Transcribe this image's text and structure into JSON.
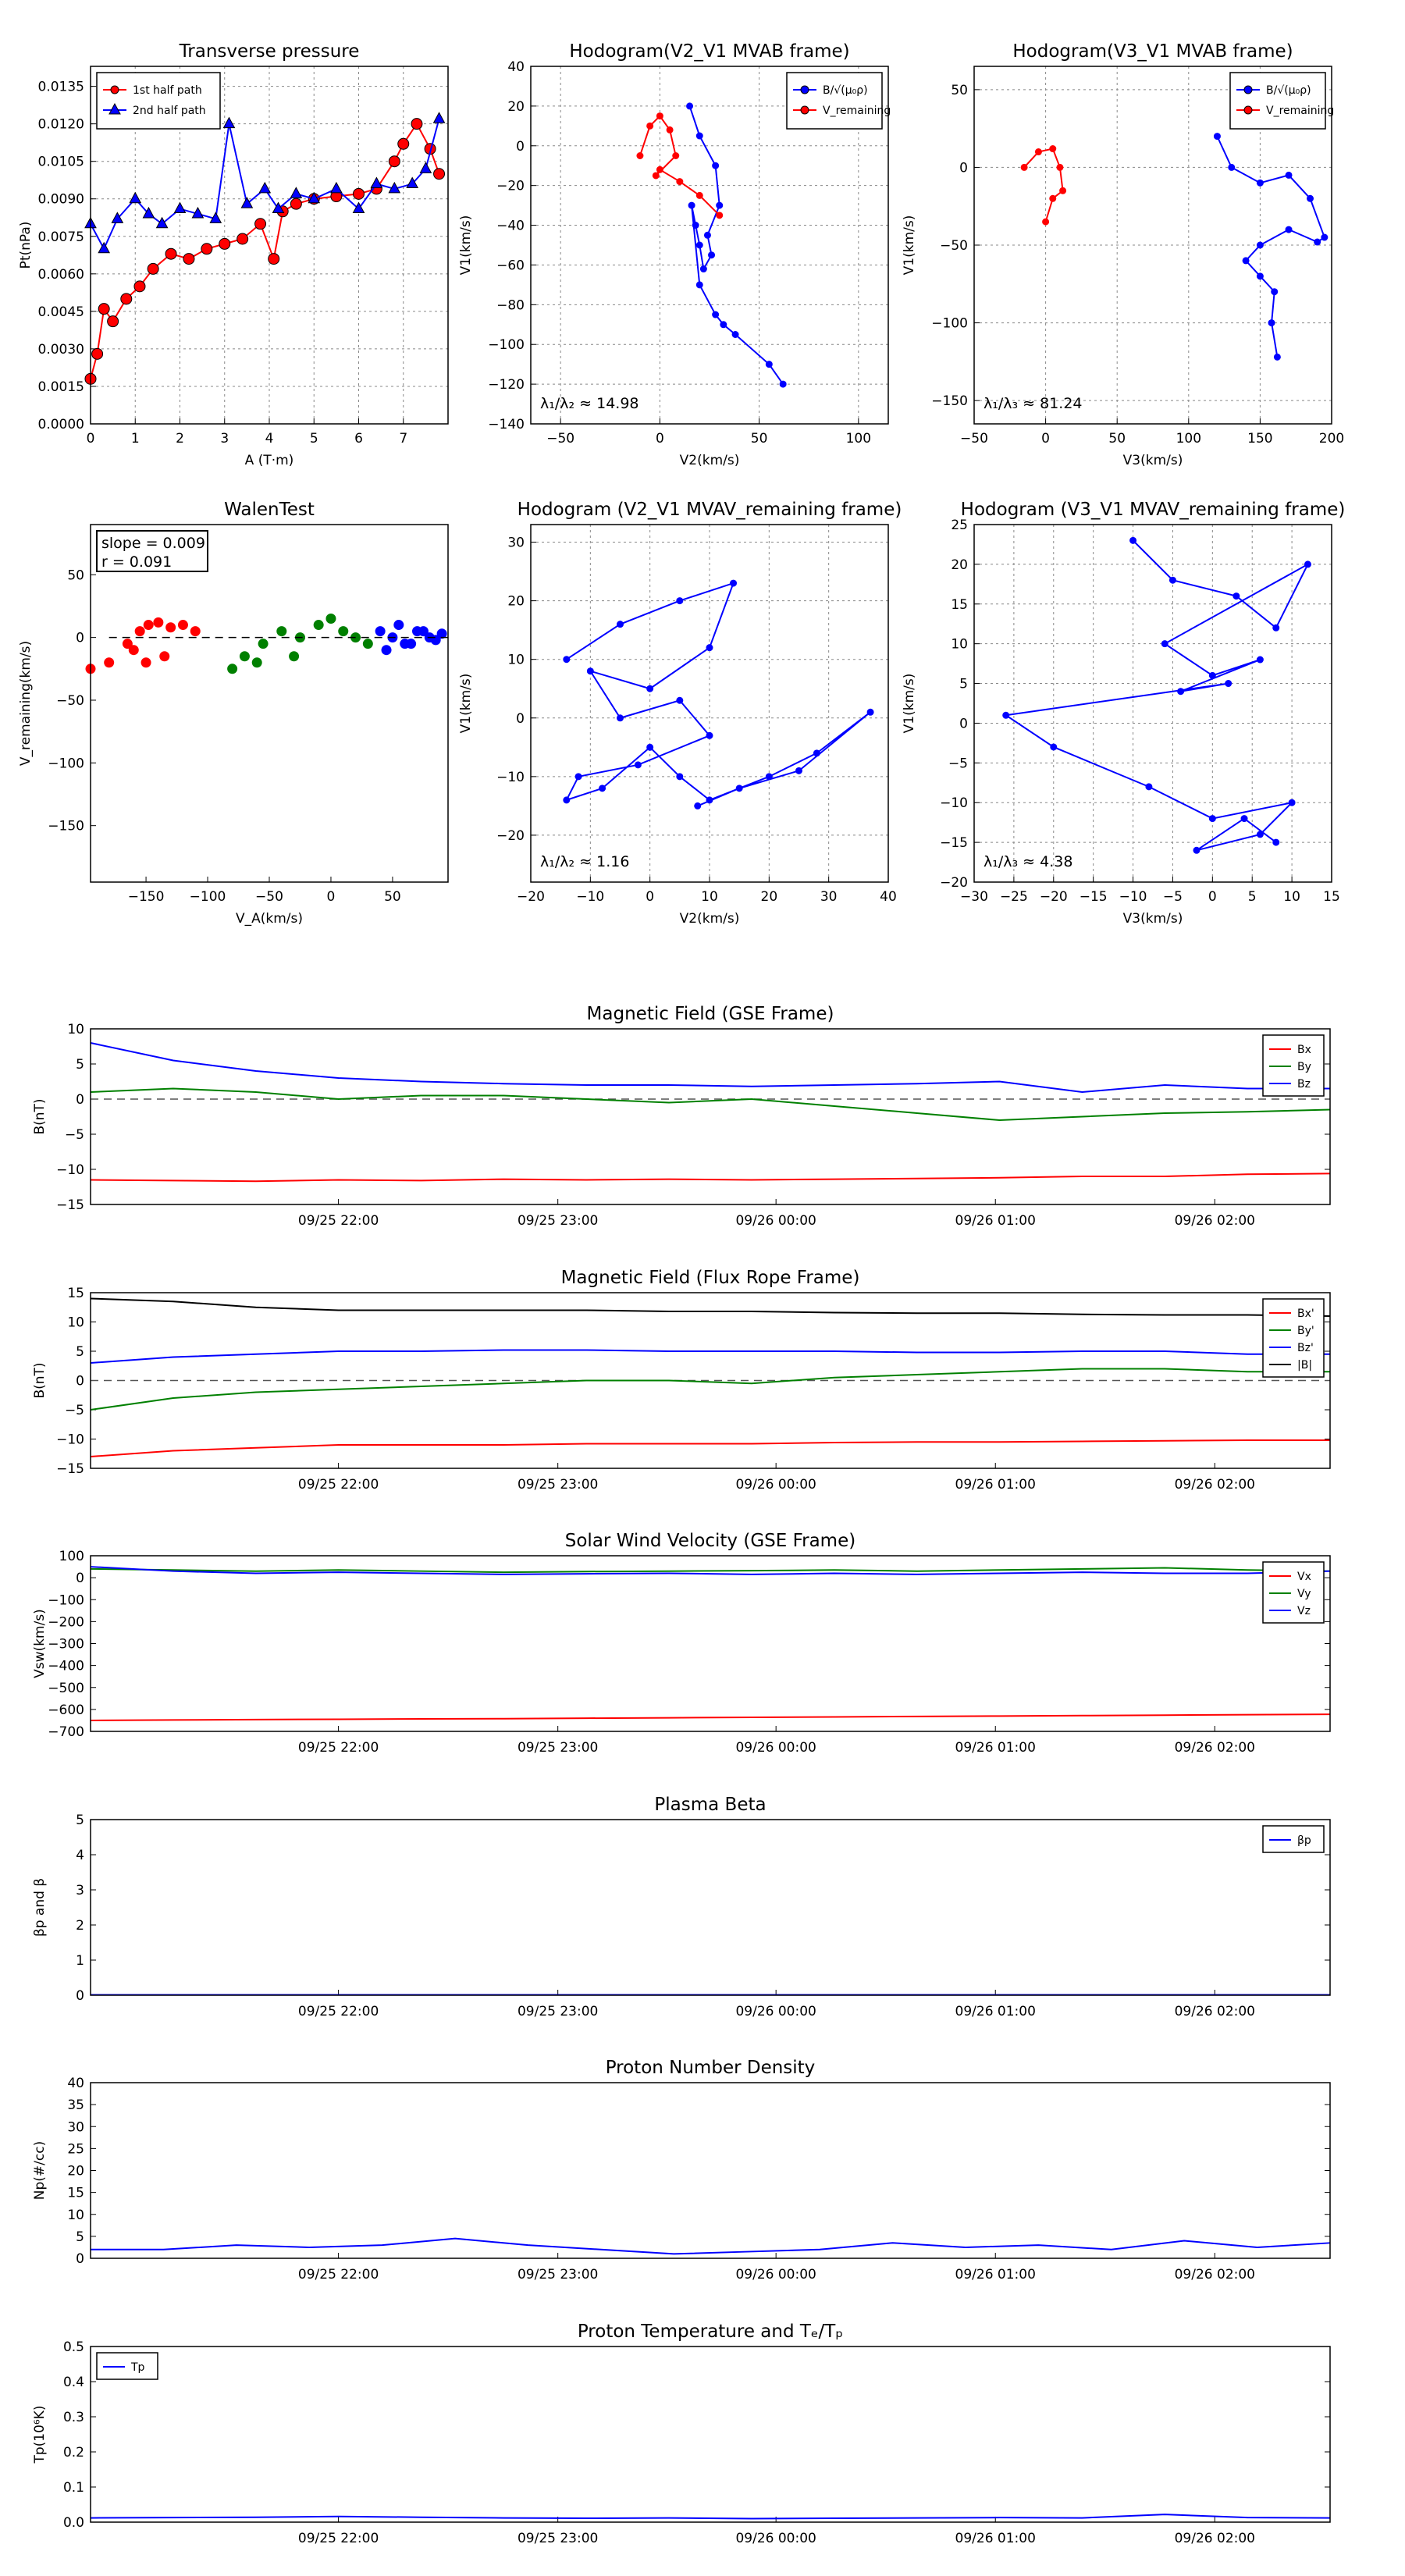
{
  "colors": {
    "red": "#ff0000",
    "green": "#008000",
    "blue": "#0000ff",
    "black": "#000000",
    "grid": "#888888"
  },
  "chart_data": [
    {
      "id": "tp",
      "type": "scatter",
      "title": "Transverse pressure",
      "xlabel": "A (T·m)",
      "ylabel": "Pt(nPa)",
      "xlim": [
        0,
        8
      ],
      "ylim": [
        0,
        0.0143
      ],
      "xticks": [
        "0",
        "1",
        "2",
        "3",
        "4",
        "5",
        "6",
        "7"
      ],
      "yticks": [
        "0.0000",
        "0.0015",
        "0.0030",
        "0.0045",
        "0.0060",
        "0.0075",
        "0.0090",
        "0.0105",
        "0.0120",
        "0.0135"
      ],
      "grid": true,
      "legend": "top-left",
      "series": [
        {
          "name": "1st half path",
          "color": "red",
          "marker": "circle",
          "x": [
            0,
            0.15,
            0.3,
            0.5,
            0.8,
            1.1,
            1.4,
            1.8,
            2.2,
            2.6,
            3.0,
            3.4,
            3.8,
            4.1,
            4.3,
            4.6,
            5.0,
            5.5,
            6.0,
            6.4,
            6.8,
            7.0,
            7.3,
            7.6,
            7.8
          ],
          "y": [
            0.0018,
            0.0028,
            0.0046,
            0.0041,
            0.005,
            0.0055,
            0.0062,
            0.0068,
            0.0066,
            0.007,
            0.0072,
            0.0074,
            0.008,
            0.0066,
            0.0085,
            0.0088,
            0.009,
            0.0091,
            0.0092,
            0.0094,
            0.0105,
            0.0112,
            0.012,
            0.011,
            0.01
          ]
        },
        {
          "name": "2nd half path",
          "color": "blue",
          "marker": "triangle",
          "x": [
            0,
            0.3,
            0.6,
            1.0,
            1.3,
            1.6,
            2.0,
            2.4,
            2.8,
            3.1,
            3.5,
            3.9,
            4.2,
            4.6,
            5.0,
            5.5,
            6.0,
            6.4,
            6.8,
            7.2,
            7.5,
            7.8
          ],
          "y": [
            0.008,
            0.007,
            0.0082,
            0.009,
            0.0084,
            0.008,
            0.0086,
            0.0084,
            0.0082,
            0.012,
            0.0088,
            0.0094,
            0.0086,
            0.0092,
            0.009,
            0.0094,
            0.0086,
            0.0096,
            0.0094,
            0.0096,
            0.0102,
            0.0122
          ]
        }
      ]
    },
    {
      "id": "h1",
      "type": "line",
      "title": "Hodogram(V2_V1 MVAB frame)",
      "xlabel": "V2(km/s)",
      "ylabel": "V1(km/s)",
      "xlim": [
        -65,
        115
      ],
      "ylim": [
        -140,
        40
      ],
      "xticks": [
        "−50",
        "0",
        "50",
        "100"
      ],
      "yticks": [
        "−140",
        "−120",
        "−100",
        "−80",
        "−60",
        "−40",
        "−20",
        "0",
        "20",
        "40"
      ],
      "grid": true,
      "legend": "top-right",
      "annotation": "λ₁/λ₂ ≈ 14.98",
      "series": [
        {
          "name": "B/√(μ₀ρ)",
          "color": "blue",
          "x": [
            15,
            20,
            28,
            30,
            24,
            26,
            22,
            20,
            18,
            16,
            20,
            28,
            32,
            38,
            55,
            62
          ],
          "y": [
            20,
            5,
            -10,
            -30,
            -45,
            -55,
            -62,
            -50,
            -40,
            -30,
            -70,
            -85,
            -90,
            -95,
            -110,
            -120
          ]
        },
        {
          "name": "V_remaining",
          "color": "red",
          "x": [
            -10,
            -5,
            0,
            5,
            8,
            -2,
            0,
            10,
            20,
            30
          ],
          "y": [
            -5,
            10,
            15,
            8,
            -5,
            -15,
            -12,
            -18,
            -25,
            -35
          ]
        }
      ]
    },
    {
      "id": "h2",
      "type": "line",
      "title": "Hodogram(V3_V1 MVAB frame)",
      "xlabel": "V3(km/s)",
      "ylabel": "V1(km/s)",
      "xlim": [
        -50,
        200
      ],
      "ylim": [
        -165,
        65
      ],
      "xticks": [
        "−50",
        "0",
        "50",
        "100",
        "150",
        "200"
      ],
      "yticks": [
        "−150",
        "−100",
        "−50",
        "0",
        "50"
      ],
      "grid": true,
      "legend": "top-right",
      "annotation": "λ₁/λ₃ ≈ 81.24",
      "series": [
        {
          "name": "B/√(μ₀ρ)",
          "color": "blue",
          "x": [
            120,
            130,
            150,
            170,
            185,
            195,
            190,
            170,
            150,
            140,
            150,
            160,
            158,
            162
          ],
          "y": [
            20,
            0,
            -10,
            -5,
            -20,
            -45,
            -48,
            -40,
            -50,
            -60,
            -70,
            -80,
            -100,
            -122
          ]
        },
        {
          "name": "V_remaining",
          "color": "red",
          "x": [
            -15,
            -5,
            5,
            10,
            12,
            5,
            0
          ],
          "y": [
            0,
            10,
            12,
            0,
            -15,
            -20,
            -35
          ]
        }
      ]
    },
    {
      "id": "walen",
      "type": "scatter",
      "title": "WalenTest",
      "xlabel": "V_A(km/s)",
      "ylabel": "V_remaining(km/s)",
      "xlim": [
        -195,
        95
      ],
      "ylim": [
        -195,
        90
      ],
      "xticks": [
        "−150",
        "−100",
        "−50",
        "0",
        "50"
      ],
      "yticks": [
        "−150",
        "−100",
        "−50",
        "0",
        "50"
      ],
      "grid": false,
      "annotation_lines": [
        "slope = 0.009",
        "r = 0.091"
      ],
      "series": [
        {
          "color": "red",
          "x": [
            -195,
            -180,
            -165,
            -155,
            -148,
            -140,
            -130,
            -120,
            -110,
            -135,
            -150,
            -160
          ],
          "y": [
            -25,
            -20,
            -5,
            5,
            10,
            12,
            8,
            10,
            5,
            -15,
            -20,
            -10
          ]
        },
        {
          "color": "green",
          "x": [
            -80,
            -70,
            -55,
            -40,
            -25,
            -10,
            0,
            10,
            20,
            30,
            -60,
            -30
          ],
          "y": [
            -25,
            -15,
            -5,
            5,
            0,
            10,
            15,
            5,
            0,
            -5,
            -20,
            -15
          ]
        },
        {
          "color": "blue",
          "x": [
            40,
            50,
            60,
            70,
            80,
            90,
            45,
            55,
            65,
            75,
            85
          ],
          "y": [
            5,
            0,
            -5,
            5,
            0,
            3,
            -10,
            10,
            -5,
            5,
            -2
          ]
        }
      ]
    },
    {
      "id": "h3",
      "type": "line",
      "title": "Hodogram (V2_V1 MVAV_remaining frame)",
      "xlabel": "V2(km/s)",
      "ylabel": "V1(km/s)",
      "xlim": [
        -20,
        40
      ],
      "ylim": [
        -28,
        33
      ],
      "xticks": [
        "−20",
        "−10",
        "0",
        "10",
        "20",
        "30",
        "40"
      ],
      "yticks": [
        "−20",
        "−10",
        "0",
        "10",
        "20",
        "30"
      ],
      "grid": true,
      "annotation": "λ₁/λ₂ ≈ 1.16",
      "series": [
        {
          "name": "",
          "color": "blue",
          "x": [
            -14,
            -5,
            5,
            14,
            10,
            0,
            -10,
            -5,
            5,
            10,
            -2,
            -12,
            -14,
            -8,
            0,
            5,
            10,
            20,
            28,
            37,
            25,
            15,
            8
          ],
          "y": [
            10,
            16,
            20,
            23,
            12,
            5,
            8,
            0,
            3,
            -3,
            -8,
            -10,
            -14,
            -12,
            -5,
            -10,
            -14,
            -10,
            -6,
            1,
            -9,
            -12,
            -15
          ]
        }
      ]
    },
    {
      "id": "h4",
      "type": "line",
      "title": "Hodogram (V3_V1 MVAV_remaining frame)",
      "xlabel": "V3(km/s)",
      "ylabel": "V1(km/s)",
      "xlim": [
        -30,
        15
      ],
      "ylim": [
        -20,
        25
      ],
      "xticks": [
        "−30",
        "−25",
        "−20",
        "−15",
        "−10",
        "−5",
        "0",
        "5",
        "10",
        "15"
      ],
      "yticks": [
        "−20",
        "−15",
        "−10",
        "−5",
        "0",
        "5",
        "10",
        "15",
        "20",
        "25"
      ],
      "grid": true,
      "annotation": "λ₁/λ₃ ≈ 4.38",
      "series": [
        {
          "name": "",
          "color": "blue",
          "x": [
            -10,
            -5,
            3,
            8,
            12,
            -6,
            0,
            6,
            -4,
            2,
            -26,
            -20,
            -8,
            0,
            10,
            6,
            -2,
            4,
            8
          ],
          "y": [
            23,
            18,
            16,
            12,
            20,
            10,
            6,
            8,
            4,
            5,
            1,
            -3,
            -8,
            -12,
            -10,
            -14,
            -16,
            -12,
            -15
          ]
        }
      ]
    }
  ],
  "timeseries": {
    "xticks": [
      "09/25 22:00",
      "09/25 23:00",
      "09/26 00:00",
      "09/26 01:00",
      "09/26 02:00"
    ],
    "panels": [
      {
        "id": "b_gse",
        "title": "Magnetic Field (GSE Frame)",
        "ylabel": "B(nT)",
        "ylim": [
          -15,
          10
        ],
        "yticks": [
          "−15",
          "−10",
          "−5",
          "0",
          "5",
          "10"
        ],
        "zero_line": true,
        "series": [
          {
            "name": "Bx",
            "color": "red",
            "values": [
              -11.5,
              -11.6,
              -11.7,
              -11.5,
              -11.6,
              -11.4,
              -11.5,
              -11.4,
              -11.5,
              -11.4,
              -11.3,
              -11.2,
              -11.0,
              -11.0,
              -10.7,
              -10.6
            ]
          },
          {
            "name": "By",
            "color": "green",
            "values": [
              1,
              1.5,
              1,
              0,
              0.5,
              0.5,
              0,
              -0.5,
              0,
              -1,
              -2,
              -3,
              -2.5,
              -2,
              -1.8,
              -1.5
            ]
          },
          {
            "name": "Bz",
            "color": "blue",
            "values": [
              8,
              5.5,
              4,
              3,
              2.5,
              2.2,
              2,
              2,
              1.8,
              2,
              2.2,
              2.5,
              1,
              2,
              1.5,
              1.5
            ]
          }
        ]
      },
      {
        "id": "b_fr",
        "title": "Magnetic Field (Flux Rope Frame)",
        "ylabel": "B(nT)",
        "ylim": [
          -15,
          15
        ],
        "yticks": [
          "−15",
          "−10",
          "−5",
          "0",
          "5",
          "10",
          "15"
        ],
        "zero_line": true,
        "series": [
          {
            "name": "Bx'",
            "color": "red",
            "values": [
              -13,
              -12,
              -11.5,
              -11,
              -11,
              -11,
              -10.8,
              -10.8,
              -10.8,
              -10.6,
              -10.5,
              -10.5,
              -10.4,
              -10.3,
              -10.2,
              -10.2
            ]
          },
          {
            "name": "By'",
            "color": "green",
            "values": [
              -5,
              -3,
              -2,
              -1.5,
              -1,
              -0.5,
              0,
              0,
              -0.5,
              0.5,
              1,
              1.5,
              2,
              2,
              1.5,
              1.5
            ]
          },
          {
            "name": "Bz'",
            "color": "blue",
            "values": [
              3,
              4,
              4.5,
              5,
              5,
              5.2,
              5.2,
              5,
              5,
              5,
              4.8,
              4.8,
              5,
              5,
              4.5,
              4.5
            ]
          },
          {
            "name": "|B|",
            "color": "black",
            "values": [
              14,
              13.5,
              12.5,
              12,
              12,
              12,
              12,
              11.8,
              11.8,
              11.6,
              11.5,
              11.5,
              11.3,
              11.2,
              11.2,
              11
            ]
          }
        ]
      },
      {
        "id": "vsw",
        "title": "Solar Wind Velocity (GSE Frame)",
        "ylabel": "Vsw(km/s)",
        "ylim": [
          -700,
          100
        ],
        "yticks": [
          "−700",
          "−600",
          "−500",
          "−400",
          "−300",
          "−200",
          "−100",
          "0",
          "100"
        ],
        "zero_line": false,
        "series": [
          {
            "name": "Vx",
            "color": "red",
            "values": [
              -650,
              -648,
              -646,
              -645,
              -643,
              -642,
              -640,
              -638,
              -636,
              -634,
              -632,
              -630,
              -628,
              -626,
              -624,
              -622
            ]
          },
          {
            "name": "Vy",
            "color": "green",
            "values": [
              40,
              35,
              30,
              35,
              30,
              25,
              28,
              30,
              32,
              35,
              30,
              35,
              40,
              45,
              35,
              30
            ]
          },
          {
            "name": "Vz",
            "color": "blue",
            "values": [
              50,
              30,
              20,
              25,
              20,
              15,
              18,
              20,
              15,
              20,
              15,
              20,
              25,
              20,
              20,
              30
            ]
          }
        ]
      },
      {
        "id": "beta",
        "title": "Plasma Beta",
        "ylabel": "βp and β",
        "ylim": [
          0,
          5
        ],
        "yticks": [
          "0",
          "1",
          "2",
          "3",
          "4",
          "5"
        ],
        "zero_line": false,
        "series": [
          {
            "name": "βp",
            "color": "blue",
            "values": [
              0.01,
              0.01,
              0.01,
              0.01,
              0.01,
              0.01,
              0.01,
              0.01,
              0.01,
              0.01,
              0.01,
              0.01,
              0.01,
              0.01,
              0.01,
              0.01
            ]
          }
        ]
      },
      {
        "id": "np",
        "title": "Proton Number Density",
        "ylabel": "Np(#/cc)",
        "ylim": [
          0,
          40
        ],
        "yticks": [
          "0",
          "5",
          "10",
          "15",
          "20",
          "25",
          "30",
          "35",
          "40"
        ],
        "zero_line": false,
        "series": [
          {
            "name": "Np",
            "color": "blue",
            "values": [
              2,
              2,
              3,
              2.5,
              3,
              4.5,
              3,
              2,
              1,
              1.5,
              2,
              3.5,
              2.5,
              3,
              2,
              4,
              2.5,
              3.5
            ]
          }
        ]
      },
      {
        "id": "tp_ts",
        "title": "Proton Temperature and Tₑ/Tₚ",
        "ylabel": "Tp(10⁶K)",
        "ylim": [
          0,
          0.5
        ],
        "yticks": [
          "0.0",
          "0.1",
          "0.2",
          "0.3",
          "0.4",
          "0.5"
        ],
        "zero_line": false,
        "series": [
          {
            "name": "Tp",
            "color": "blue",
            "values": [
              0.012,
              0.013,
              0.014,
              0.016,
              0.014,
              0.012,
              0.011,
              0.012,
              0.01,
              0.011,
              0.012,
              0.013,
              0.012,
              0.022,
              0.013,
              0.012
            ]
          }
        ]
      }
    ]
  }
}
